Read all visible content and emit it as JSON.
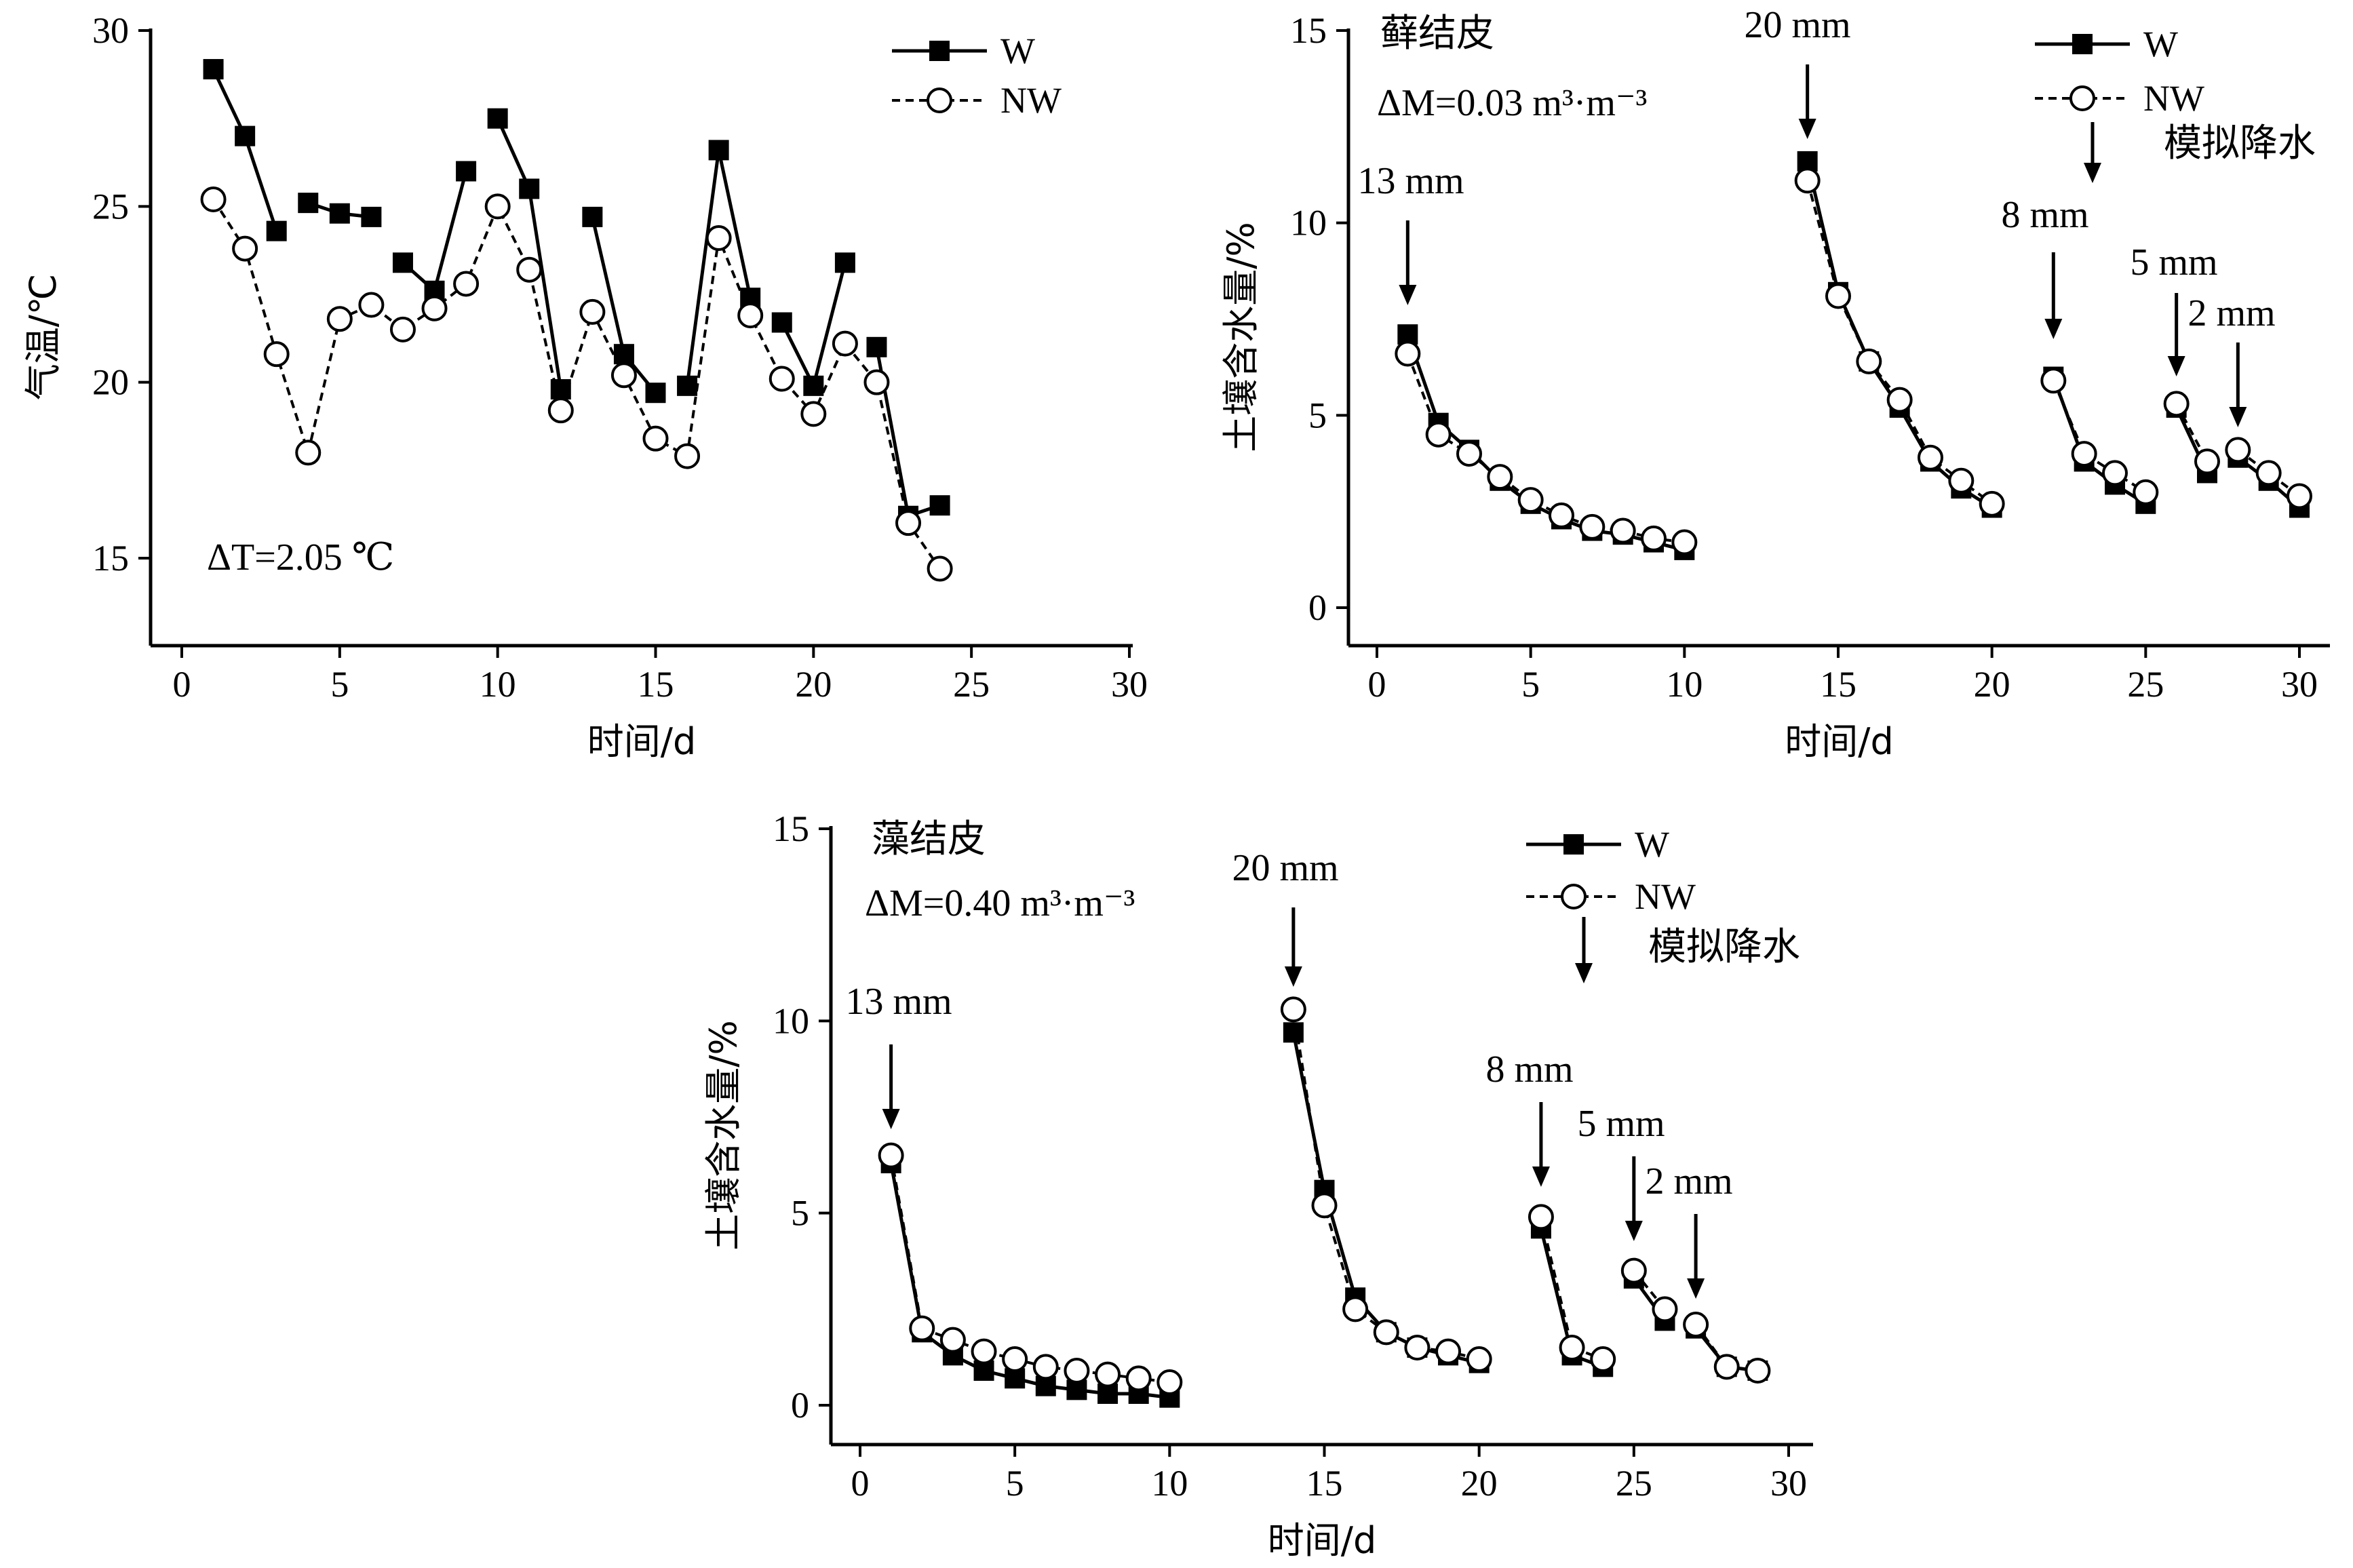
{
  "chart_data": [
    {
      "id": "temp",
      "type": "line",
      "title": "",
      "xlabel": "时间/d",
      "ylabel": "气温/℃",
      "xlim": [
        0,
        30
      ],
      "ylim": [
        13,
        30
      ],
      "xticks": [
        0,
        5,
        10,
        15,
        20,
        25,
        30
      ],
      "yticks": [
        15,
        20,
        25,
        30
      ],
      "annotation": "ΔT=2.05 ℃",
      "legend": {
        "position": "top-right",
        "entries": [
          "W",
          "NW"
        ]
      },
      "series": [
        {
          "name": "W",
          "style": "solid-square",
          "segments": [
            [
              [
                1,
                28.9
              ],
              [
                2,
                27.0
              ],
              [
                3,
                24.3
              ]
            ],
            [
              [
                4,
                25.1
              ],
              [
                5,
                24.8
              ],
              [
                6,
                24.7
              ]
            ],
            [
              [
                7,
                23.4
              ],
              [
                8,
                22.6
              ],
              [
                9,
                26.0
              ]
            ],
            [
              [
                10,
                27.5
              ],
              [
                11,
                25.5
              ],
              [
                12,
                19.8
              ]
            ],
            [
              [
                13,
                24.7
              ],
              [
                14,
                20.8
              ],
              [
                15,
                19.7
              ]
            ],
            [
              [
                16,
                19.9
              ],
              [
                17,
                26.6
              ],
              [
                18,
                22.4
              ]
            ],
            [
              [
                19,
                21.7
              ],
              [
                20,
                19.9
              ],
              [
                21,
                23.4
              ]
            ],
            [
              [
                22,
                21.0
              ],
              [
                23,
                16.2
              ],
              [
                24,
                16.5
              ]
            ]
          ]
        },
        {
          "name": "NW",
          "style": "dashed-circle",
          "segments": [
            [
              [
                1,
                25.2
              ],
              [
                2,
                23.8
              ],
              [
                3,
                20.8
              ],
              [
                4,
                18.0
              ],
              [
                5,
                21.8
              ],
              [
                6,
                22.2
              ],
              [
                7,
                21.5
              ],
              [
                8,
                22.1
              ],
              [
                9,
                22.8
              ],
              [
                10,
                25.0
              ],
              [
                11,
                23.2
              ],
              [
                12,
                19.2
              ],
              [
                13,
                22.0
              ],
              [
                14,
                20.2
              ],
              [
                15,
                18.4
              ],
              [
                16,
                17.9
              ],
              [
                17,
                24.1
              ],
              [
                18,
                21.9
              ],
              [
                19,
                20.1
              ],
              [
                20,
                19.1
              ],
              [
                21,
                21.1
              ],
              [
                22,
                20.0
              ],
              [
                23,
                16.0
              ],
              [
                24,
                14.7
              ]
            ]
          ]
        }
      ]
    },
    {
      "id": "moss",
      "type": "line",
      "title": "藓结皮",
      "xlabel": "时间/d",
      "ylabel": "土壤含水量/%",
      "xlim": [
        -1,
        31
      ],
      "ylim": [
        -1,
        15
      ],
      "xticks": [
        0,
        5,
        10,
        15,
        20,
        25,
        30
      ],
      "yticks": [
        0,
        5,
        10,
        15
      ],
      "annotation": "ΔM=0.03 m³·m⁻³",
      "legend": {
        "position": "top-right",
        "entries": [
          "W",
          "NW"
        ],
        "arrow_label": "模拟降水"
      },
      "rain_events": [
        {
          "x": 1,
          "label": "13 mm"
        },
        {
          "x": 14,
          "label": "20 mm"
        },
        {
          "x": 22,
          "label": "8 mm"
        },
        {
          "x": 26,
          "label": "5 mm"
        },
        {
          "x": 28,
          "label": "2 mm"
        }
      ],
      "series": [
        {
          "name": "W",
          "style": "solid-square",
          "segments": [
            [
              [
                1,
                7.1
              ],
              [
                2,
                4.8
              ],
              [
                3,
                4.1
              ],
              [
                4,
                3.3
              ],
              [
                5,
                2.7
              ],
              [
                6,
                2.3
              ],
              [
                7,
                2.0
              ],
              [
                8,
                1.9
              ],
              [
                9,
                1.7
              ],
              [
                10,
                1.5
              ]
            ],
            [
              [
                14,
                11.6
              ],
              [
                15,
                8.2
              ],
              [
                16,
                6.4
              ],
              [
                17,
                5.2
              ],
              [
                18,
                3.8
              ],
              [
                19,
                3.1
              ],
              [
                20,
                2.6
              ]
            ],
            [
              [
                22,
                6.0
              ],
              [
                23,
                3.8
              ],
              [
                24,
                3.2
              ],
              [
                25,
                2.7
              ]
            ],
            [
              [
                26,
                5.2
              ],
              [
                27,
                3.5
              ]
            ],
            [
              [
                28,
                3.9
              ],
              [
                29,
                3.3
              ],
              [
                30,
                2.6
              ]
            ]
          ]
        },
        {
          "name": "NW",
          "style": "dashed-circle",
          "segments": [
            [
              [
                1,
                6.6
              ],
              [
                2,
                4.5
              ],
              [
                3,
                4.0
              ],
              [
                4,
                3.4
              ],
              [
                5,
                2.8
              ],
              [
                6,
                2.4
              ],
              [
                7,
                2.1
              ],
              [
                8,
                2.0
              ],
              [
                9,
                1.8
              ],
              [
                10,
                1.7
              ]
            ],
            [
              [
                14,
                11.1
              ],
              [
                15,
                8.1
              ],
              [
                16,
                6.4
              ],
              [
                17,
                5.4
              ],
              [
                18,
                3.9
              ],
              [
                19,
                3.3
              ],
              [
                20,
                2.7
              ]
            ],
            [
              [
                22,
                5.9
              ],
              [
                23,
                4.0
              ],
              [
                24,
                3.5
              ],
              [
                25,
                3.0
              ]
            ],
            [
              [
                26,
                5.3
              ],
              [
                27,
                3.8
              ]
            ],
            [
              [
                28,
                4.1
              ],
              [
                29,
                3.5
              ],
              [
                30,
                2.9
              ]
            ]
          ]
        }
      ]
    },
    {
      "id": "algae",
      "type": "line",
      "title": "藻结皮",
      "xlabel": "时间/d",
      "ylabel": "土壤含水量/%",
      "xlim": [
        -1,
        30
      ],
      "ylim": [
        -1,
        15
      ],
      "xticks": [
        0,
        5,
        10,
        15,
        20,
        25,
        30
      ],
      "yticks": [
        0,
        5,
        10,
        15
      ],
      "annotation": "ΔM=0.40 m³·m⁻³",
      "legend": {
        "position": "top-right",
        "entries": [
          "W",
          "NW"
        ],
        "arrow_label": "模拟降水"
      },
      "rain_events": [
        {
          "x": 1,
          "label": "13 mm"
        },
        {
          "x": 14,
          "label": "20 mm"
        },
        {
          "x": 22,
          "label": "8 mm"
        },
        {
          "x": 25,
          "label": "5 mm"
        },
        {
          "x": 27,
          "label": "2 mm"
        }
      ],
      "series": [
        {
          "name": "W",
          "style": "solid-square",
          "segments": [
            [
              [
                1,
                6.3
              ],
              [
                2,
                1.9
              ],
              [
                3,
                1.3
              ],
              [
                4,
                0.9
              ],
              [
                5,
                0.7
              ],
              [
                6,
                0.5
              ],
              [
                7,
                0.4
              ],
              [
                8,
                0.3
              ],
              [
                9,
                0.3
              ],
              [
                10,
                0.2
              ]
            ],
            [
              [
                14,
                9.7
              ],
              [
                15,
                5.6
              ],
              [
                16,
                2.8
              ],
              [
                17,
                1.9
              ],
              [
                18,
                1.5
              ],
              [
                19,
                1.3
              ],
              [
                20,
                1.1
              ]
            ],
            [
              [
                22,
                4.6
              ],
              [
                23,
                1.3
              ],
              [
                24,
                1.0
              ]
            ],
            [
              [
                25,
                3.3
              ],
              [
                26,
                2.2
              ]
            ],
            [
              [
                27,
                2.0
              ],
              [
                28,
                1.0
              ],
              [
                29,
                0.9
              ]
            ]
          ]
        },
        {
          "name": "NW",
          "style": "dashed-circle",
          "segments": [
            [
              [
                1,
                6.5
              ],
              [
                2,
                2.0
              ],
              [
                3,
                1.7
              ],
              [
                4,
                1.4
              ],
              [
                5,
                1.2
              ],
              [
                6,
                1.0
              ],
              [
                7,
                0.9
              ],
              [
                8,
                0.8
              ],
              [
                9,
                0.7
              ],
              [
                10,
                0.6
              ]
            ],
            [
              [
                14,
                10.3
              ],
              [
                15,
                5.2
              ],
              [
                16,
                2.5
              ],
              [
                17,
                1.9
              ],
              [
                18,
                1.5
              ],
              [
                19,
                1.4
              ],
              [
                20,
                1.2
              ]
            ],
            [
              [
                22,
                4.9
              ],
              [
                23,
                1.5
              ],
              [
                24,
                1.2
              ]
            ],
            [
              [
                25,
                3.5
              ],
              [
                26,
                2.5
              ]
            ],
            [
              [
                27,
                2.1
              ],
              [
                28,
                1.0
              ],
              [
                29,
                0.9
              ]
            ]
          ]
        }
      ]
    }
  ]
}
